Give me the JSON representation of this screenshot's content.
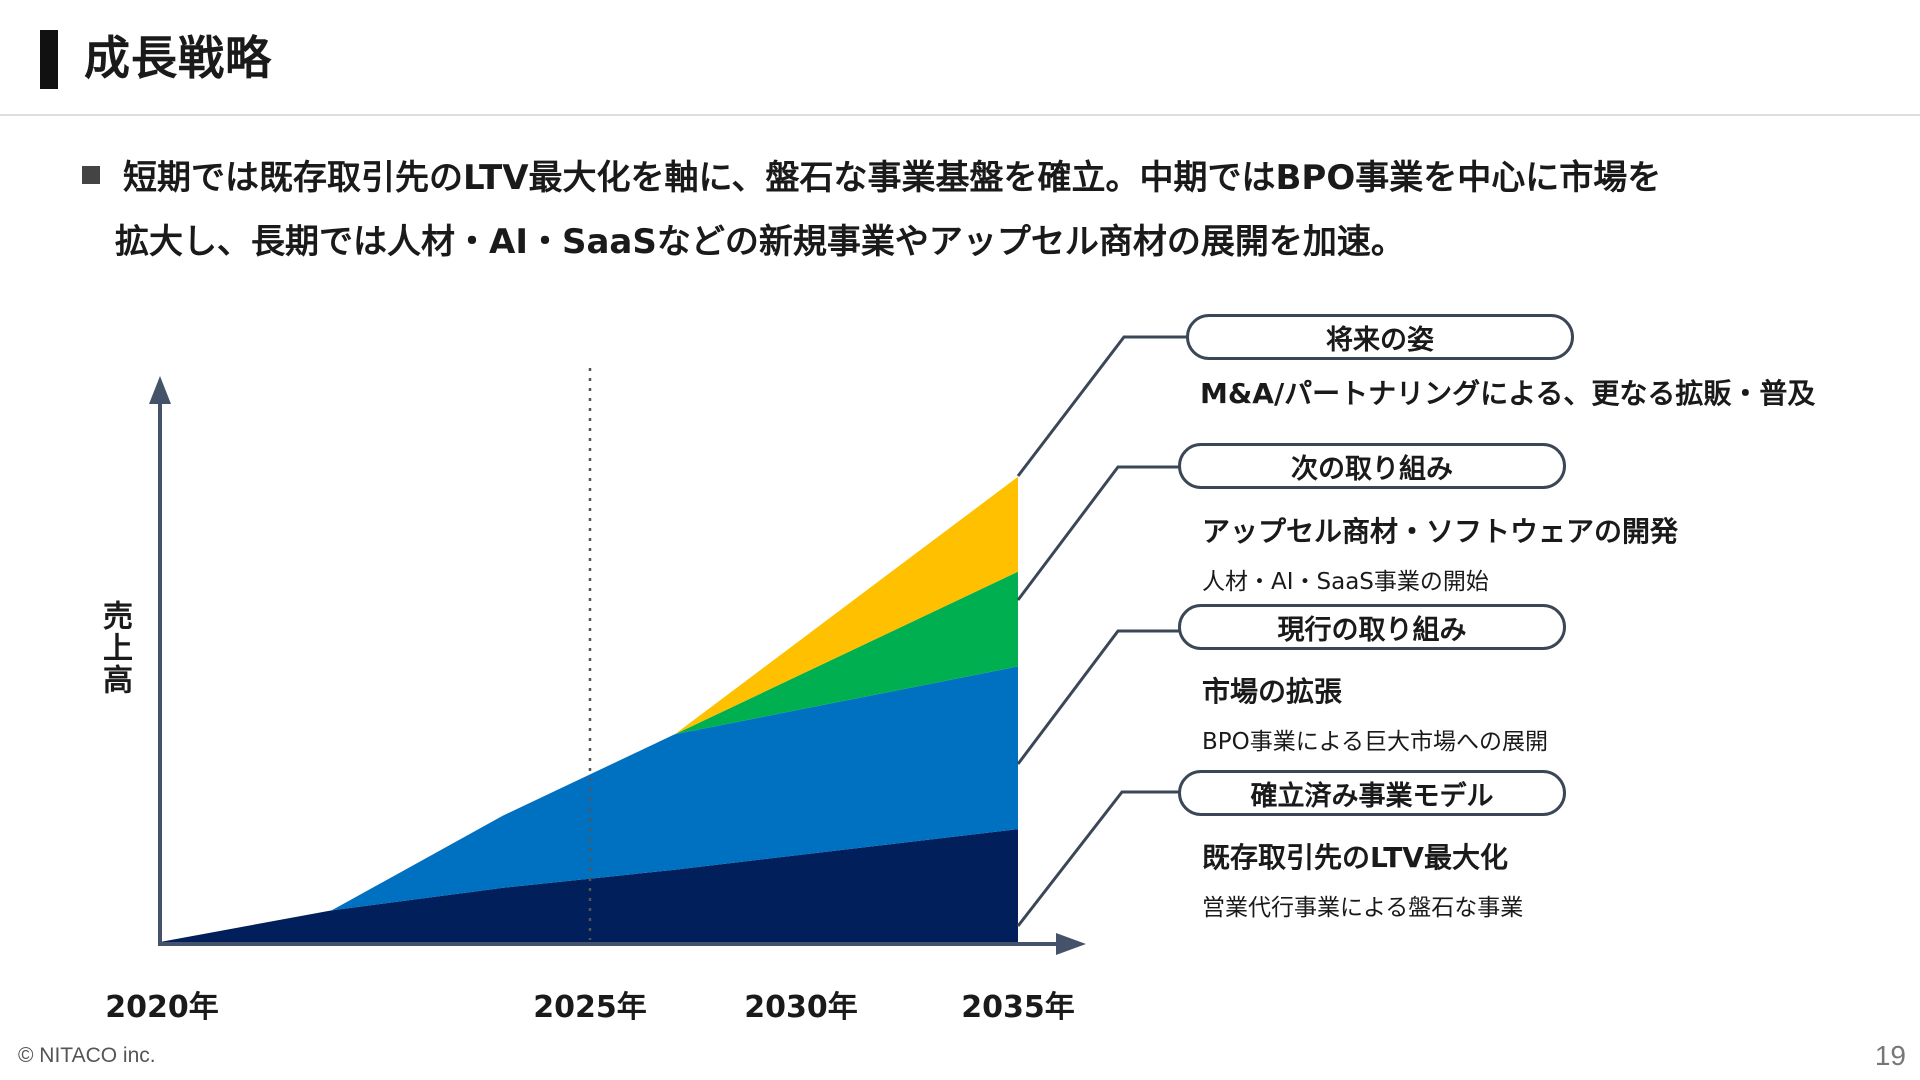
{
  "header": {
    "title": "成長戦略"
  },
  "lead": {
    "line1": "短期では既存取引先のLTV最大化を軸に、盤石な事業基盤を確立。中期ではBPO事業を中心に市場を",
    "line2": "拡大し、長期では人材・AI・SaaSなどの新規事業やアップセル商材の展開を加速。"
  },
  "chart_data": {
    "type": "area",
    "stacked": true,
    "ylabel": "売上高",
    "x_ticks": [
      "2020年",
      "2025年",
      "2030年",
      "2035年"
    ],
    "x": [
      2020,
      2023,
      2026,
      2029,
      2035
    ],
    "series": [
      {
        "name": "確立済み事業モデル",
        "color": "#001f5b",
        "values": [
          0,
          7,
          12,
          16,
          25
        ]
      },
      {
        "name": "現行の取り組み",
        "color": "#0070c0",
        "values": [
          0,
          0,
          16,
          30,
          36
        ]
      },
      {
        "name": "次の取り組み",
        "color": "#00b050",
        "values": [
          0,
          0,
          0,
          0,
          21
        ]
      },
      {
        "name": "将来の姿",
        "color": "#ffc000",
        "values": [
          0,
          0,
          0,
          0,
          21
        ]
      }
    ],
    "xlim": [
      2020,
      2035
    ],
    "ylim": [
      0,
      120
    ],
    "reference_line": 2025,
    "grid": false
  },
  "annotations": [
    {
      "pill": "将来の姿",
      "bold": "M&A/パートナリングによる、更なる拡販・普及",
      "small": ""
    },
    {
      "pill": "次の取り組み",
      "bold": "アップセル商材・ソフトウェアの開発",
      "small": "人材・AI・SaaS事業の開始"
    },
    {
      "pill": "現行の取り組み",
      "bold": "市場の拡張",
      "small": "BPO事業による巨大市場への展開"
    },
    {
      "pill": "確立済み事業モデル",
      "bold": "既存取引先のLTV最大化",
      "small": "営業代行事業による盤石な事業"
    }
  ],
  "footer": {
    "copyright": "© NITACO inc.",
    "page": "19"
  }
}
